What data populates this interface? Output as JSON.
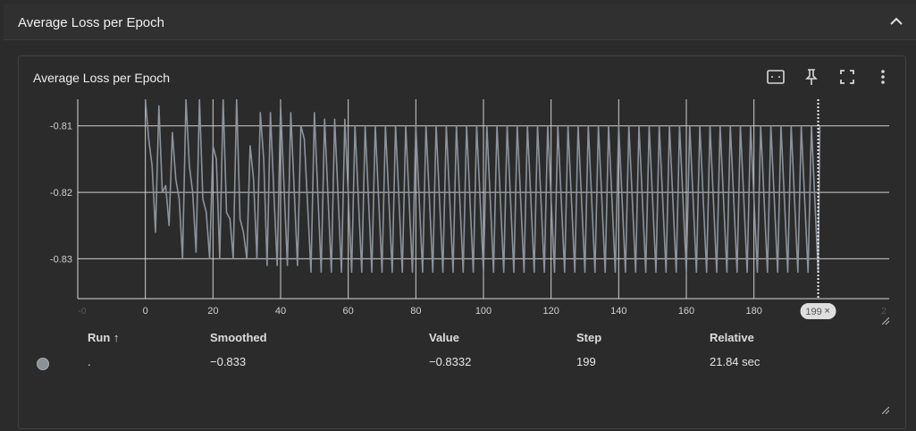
{
  "section": {
    "title": "Average Loss per Epoch"
  },
  "card": {
    "title": "Average Loss per Epoch",
    "tools": [
      "fit-domain-icon",
      "pin-icon",
      "fullscreen-icon",
      "more-vert-icon"
    ]
  },
  "chart_data": {
    "type": "line",
    "title": "Average Loss per Epoch",
    "xlabel": "",
    "ylabel": "",
    "x_ticks": [
      "0",
      "20",
      "40",
      "60",
      "80",
      "100",
      "120",
      "140",
      "160",
      "180"
    ],
    "x_edge_ticks": [
      "-0",
      "2"
    ],
    "y_ticks": [
      "-0.81",
      "-0.82",
      "-0.83"
    ],
    "xlim": [
      -20,
      220
    ],
    "ylim": [
      -0.836,
      -0.806
    ],
    "grid": true,
    "series": [
      {
        "name": ".",
        "color": "#8c939c",
        "points": [
          [
            0,
            -0.806
          ],
          [
            1,
            -0.812
          ],
          [
            2,
            -0.816
          ],
          [
            3,
            -0.826
          ],
          [
            4,
            -0.807
          ],
          [
            5,
            -0.82
          ],
          [
            6,
            -0.819
          ],
          [
            7,
            -0.825
          ],
          [
            8,
            -0.811
          ],
          [
            9,
            -0.818
          ],
          [
            10,
            -0.821
          ],
          [
            11,
            -0.83
          ],
          [
            12,
            -0.806
          ],
          [
            13,
            -0.816
          ],
          [
            14,
            -0.82
          ],
          [
            15,
            -0.829
          ],
          [
            16,
            -0.806
          ],
          [
            17,
            -0.821
          ],
          [
            18,
            -0.823
          ],
          [
            19,
            -0.83
          ],
          [
            20,
            -0.813
          ],
          [
            21,
            -0.815
          ],
          [
            22,
            -0.83
          ],
          [
            23,
            -0.806
          ],
          [
            24,
            -0.823
          ],
          [
            25,
            -0.824
          ],
          [
            26,
            -0.83
          ],
          [
            27,
            -0.806
          ],
          [
            28,
            -0.824
          ],
          [
            29,
            -0.826
          ],
          [
            30,
            -0.83
          ],
          [
            31,
            -0.813
          ],
          [
            32,
            -0.818
          ],
          [
            33,
            -0.83
          ],
          [
            34,
            -0.808
          ],
          [
            35,
            -0.815
          ],
          [
            36,
            -0.831
          ],
          [
            37,
            -0.808
          ],
          [
            38,
            -0.82
          ],
          [
            39,
            -0.831
          ],
          [
            40,
            -0.807
          ],
          [
            42,
            -0.831
          ],
          [
            43,
            -0.808
          ],
          [
            45,
            -0.831
          ],
          [
            46,
            -0.81
          ],
          [
            47,
            -0.812
          ],
          [
            49,
            -0.832
          ],
          [
            50,
            -0.808
          ],
          [
            52,
            -0.832
          ],
          [
            53,
            -0.809
          ],
          [
            55,
            -0.832
          ],
          [
            56,
            -0.809
          ],
          [
            58,
            -0.832
          ],
          [
            59,
            -0.809
          ],
          [
            61,
            -0.832
          ],
          [
            62,
            -0.81
          ],
          [
            64,
            -0.832
          ],
          [
            65,
            -0.81
          ],
          [
            67,
            -0.832
          ],
          [
            68,
            -0.81
          ],
          [
            70,
            -0.832
          ],
          [
            71,
            -0.81
          ],
          [
            73,
            -0.832
          ],
          [
            74,
            -0.81
          ],
          [
            76,
            -0.832
          ],
          [
            77,
            -0.81
          ],
          [
            79,
            -0.832
          ],
          [
            80,
            -0.81
          ],
          [
            82,
            -0.832
          ],
          [
            83,
            -0.81
          ],
          [
            85,
            -0.832
          ],
          [
            86,
            -0.81
          ],
          [
            88,
            -0.832
          ],
          [
            89,
            -0.81
          ],
          [
            91,
            -0.832
          ],
          [
            92,
            -0.81
          ],
          [
            94,
            -0.832
          ],
          [
            95,
            -0.81
          ],
          [
            97,
            -0.832
          ],
          [
            98,
            -0.81
          ],
          [
            100,
            -0.832
          ],
          [
            101,
            -0.81
          ],
          [
            103,
            -0.832
          ],
          [
            104,
            -0.81
          ],
          [
            106,
            -0.832
          ],
          [
            107,
            -0.81
          ],
          [
            109,
            -0.832
          ],
          [
            110,
            -0.81
          ],
          [
            112,
            -0.832
          ],
          [
            113,
            -0.81
          ],
          [
            115,
            -0.832
          ],
          [
            116,
            -0.81
          ],
          [
            118,
            -0.832
          ],
          [
            119,
            -0.81
          ],
          [
            121,
            -0.832
          ],
          [
            122,
            -0.81
          ],
          [
            124,
            -0.832
          ],
          [
            125,
            -0.81
          ],
          [
            127,
            -0.832
          ],
          [
            128,
            -0.81
          ],
          [
            130,
            -0.832
          ],
          [
            131,
            -0.81
          ],
          [
            133,
            -0.832
          ],
          [
            134,
            -0.81
          ],
          [
            136,
            -0.832
          ],
          [
            137,
            -0.81
          ],
          [
            139,
            -0.832
          ],
          [
            140,
            -0.81
          ],
          [
            142,
            -0.832
          ],
          [
            143,
            -0.81
          ],
          [
            145,
            -0.832
          ],
          [
            146,
            -0.81
          ],
          [
            148,
            -0.832
          ],
          [
            149,
            -0.81
          ],
          [
            151,
            -0.832
          ],
          [
            152,
            -0.81
          ],
          [
            154,
            -0.832
          ],
          [
            155,
            -0.81
          ],
          [
            157,
            -0.832
          ],
          [
            158,
            -0.81
          ],
          [
            160,
            -0.832
          ],
          [
            161,
            -0.81
          ],
          [
            163,
            -0.832
          ],
          [
            164,
            -0.81
          ],
          [
            166,
            -0.832
          ],
          [
            167,
            -0.81
          ],
          [
            169,
            -0.832
          ],
          [
            170,
            -0.81
          ],
          [
            172,
            -0.832
          ],
          [
            173,
            -0.81
          ],
          [
            175,
            -0.832
          ],
          [
            176,
            -0.81
          ],
          [
            178,
            -0.832
          ],
          [
            179,
            -0.81
          ],
          [
            181,
            -0.832
          ],
          [
            182,
            -0.81
          ],
          [
            184,
            -0.832
          ],
          [
            185,
            -0.81
          ],
          [
            187,
            -0.832
          ],
          [
            188,
            -0.81
          ],
          [
            190,
            -0.832
          ],
          [
            191,
            -0.81
          ],
          [
            193,
            -0.832
          ],
          [
            194,
            -0.81
          ],
          [
            196,
            -0.832
          ],
          [
            197,
            -0.81
          ],
          [
            199,
            -0.832
          ],
          [
            199.5,
            -0.81
          ]
        ]
      }
    ],
    "cursor": {
      "step": 199,
      "label": "199",
      "close": "×"
    }
  },
  "table": {
    "headers": {
      "run": "Run ↑",
      "smoothed": "Smoothed",
      "value": "Value",
      "step": "Step",
      "relative": "Relative"
    },
    "row": {
      "run": ".",
      "smoothed": "−0.833",
      "value": "−0.8332",
      "step": "199",
      "relative": "21.84 sec",
      "color": "#8b9199"
    }
  }
}
